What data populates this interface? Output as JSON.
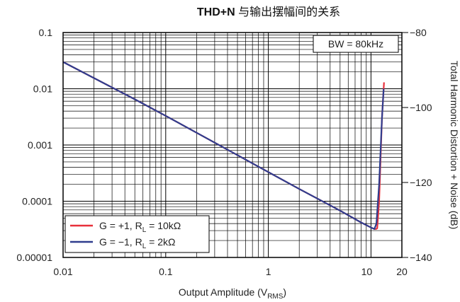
{
  "chart_data": {
    "type": "line",
    "title_bold": "THD+N",
    "title_rest": " 与输出摆幅间的关系",
    "xlabel": "Output Amplitude (V",
    "xlabel_sub": "RMS",
    "xlabel_end": ")",
    "ylabel_right": "Total Harmonic Distortion + Noise (dB)",
    "x_scale": "log",
    "y_scale": "log",
    "xlim": [
      0.01,
      20
    ],
    "ylim": [
      1e-05,
      0.1
    ],
    "y2lim": [
      -140,
      -80
    ],
    "grid": true,
    "x_tick_labels": [
      "0.01",
      "0.1",
      "1",
      "10",
      "20"
    ],
    "y_tick_labels": [
      "0.1",
      "0.01",
      "0.001",
      "0.0001",
      "0.00001"
    ],
    "y2_tick_labels": [
      "−80",
      "−100",
      "−120",
      "−140"
    ],
    "annotation": "BW = 80kHz",
    "legend_position": "bottom-left",
    "series": [
      {
        "name_main": "G = +1, R",
        "name_sub": "L",
        "name_end": " = 10kΩ",
        "color": "#e8303a",
        "x": [
          0.01,
          0.02,
          0.05,
          0.1,
          0.2,
          0.5,
          1,
          2,
          5,
          8,
          10,
          10.8,
          11.2,
          11.5,
          12,
          12.8,
          13.4
        ],
        "y": [
          0.03,
          0.0155,
          0.0065,
          0.0033,
          0.00165,
          0.00066,
          0.00033,
          0.000165,
          6.8e-05,
          4.2e-05,
          3.4e-05,
          3.2e-05,
          3.2e-05,
          3.3e-05,
          0.0001,
          0.003,
          0.013
        ]
      },
      {
        "name_main": "G = −1, R",
        "name_sub": "L",
        "name_end": " = 2kΩ",
        "color": "#2f3d8e",
        "x": [
          0.01,
          0.02,
          0.05,
          0.1,
          0.2,
          0.5,
          1,
          2,
          5,
          8,
          10,
          10.8,
          11.3,
          12,
          12.8,
          13.3
        ],
        "y": [
          0.03,
          0.0155,
          0.0065,
          0.0033,
          0.00165,
          0.00066,
          0.00033,
          0.000165,
          6.8e-05,
          4.2e-05,
          3.4e-05,
          3.2e-05,
          4e-05,
          0.0002,
          0.003,
          0.01
        ]
      }
    ]
  }
}
